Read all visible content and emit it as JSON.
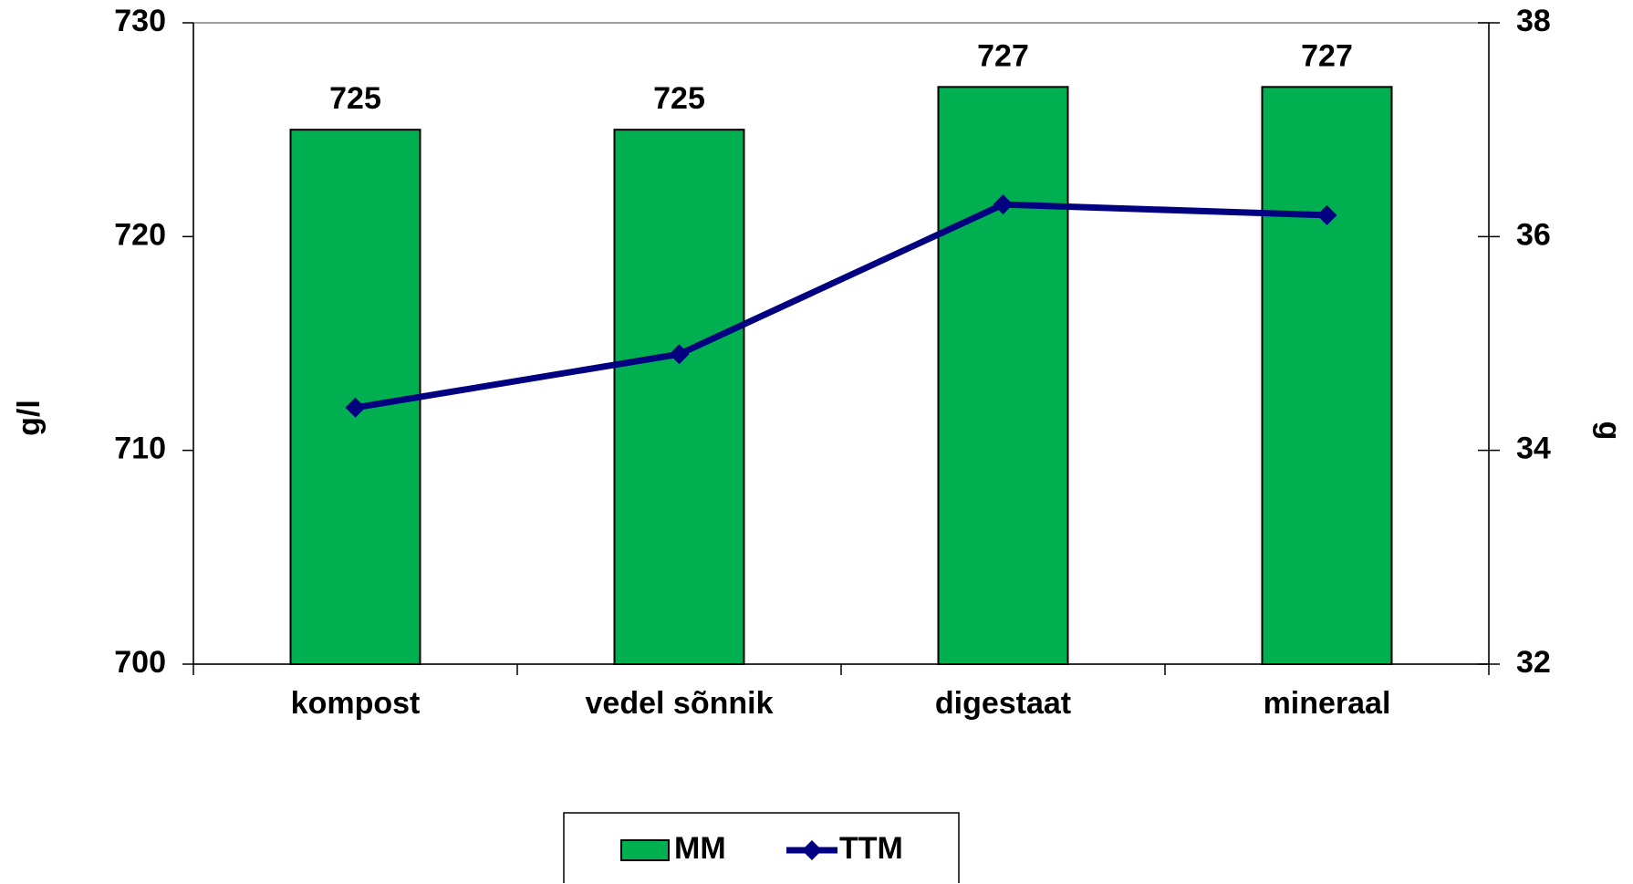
{
  "chart_data": {
    "type": "bar",
    "categories": [
      "kompost",
      "vedel sõnnik",
      "digestaat",
      "mineraal"
    ],
    "series": [
      {
        "name": "MM",
        "type": "bar",
        "color": "#00b050",
        "values": [
          725,
          725,
          727,
          727
        ]
      },
      {
        "name": "TTM",
        "type": "line",
        "axis": "y2",
        "color": "#000080",
        "values": [
          34.4,
          34.9,
          36.3,
          36.2
        ]
      }
    ],
    "ylabel": "g/l",
    "y2label": "g",
    "ylim": [
      700,
      730
    ],
    "yticks": [
      700,
      710,
      720,
      730
    ],
    "y2lim": [
      32,
      38
    ],
    "y2ticks": [
      32,
      34,
      36,
      38
    ],
    "legend": "bottom"
  }
}
